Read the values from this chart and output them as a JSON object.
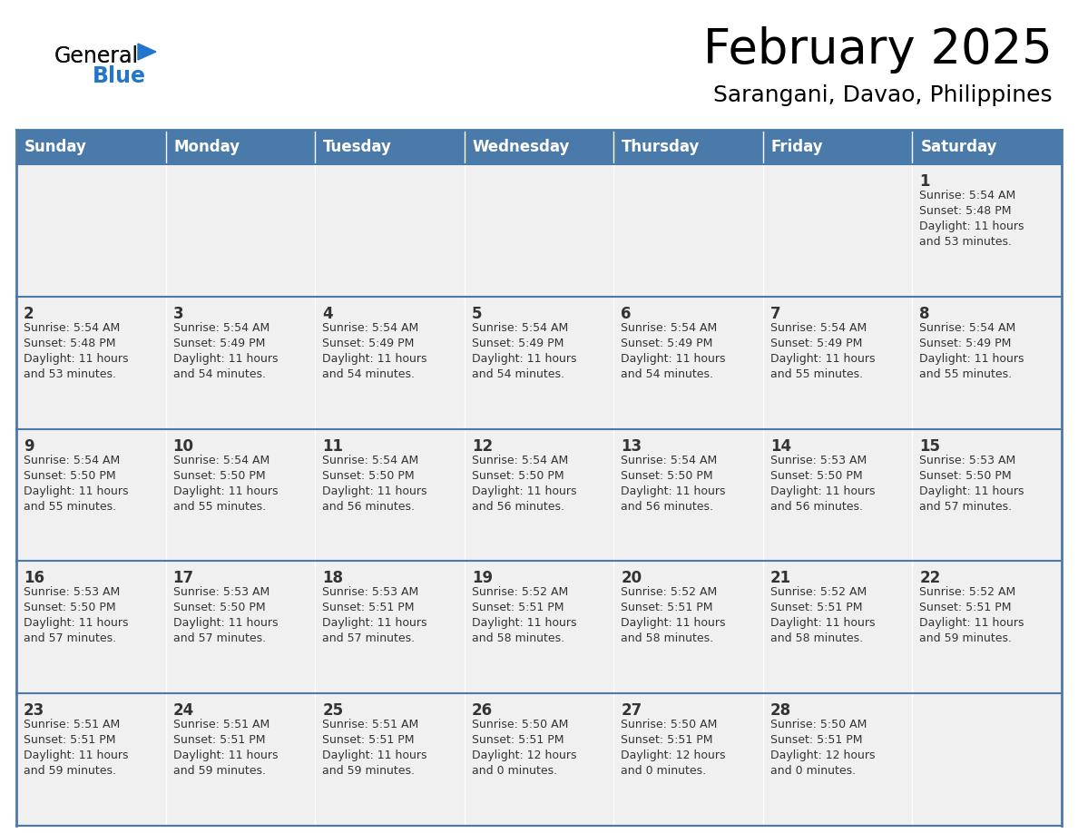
{
  "title": "February 2025",
  "subtitle": "Sarangani, Davao, Philippines",
  "header_color": "#4a7aaa",
  "header_text_color": "#FFFFFF",
  "cell_bg_color": "#F0F0F0",
  "border_color": "#4a7aaa",
  "text_color": "#333333",
  "day_num_color": "#333333",
  "day_headers": [
    "Sunday",
    "Monday",
    "Tuesday",
    "Wednesday",
    "Thursday",
    "Friday",
    "Saturday"
  ],
  "logo_color_general": "#111111",
  "logo_color_blue": "#2277cc",
  "logo_triangle_color": "#2277cc",
  "weeks": [
    [
      {
        "day": "",
        "info": ""
      },
      {
        "day": "",
        "info": ""
      },
      {
        "day": "",
        "info": ""
      },
      {
        "day": "",
        "info": ""
      },
      {
        "day": "",
        "info": ""
      },
      {
        "day": "",
        "info": ""
      },
      {
        "day": "1",
        "info": "Sunrise: 5:54 AM\nSunset: 5:48 PM\nDaylight: 11 hours\nand 53 minutes."
      }
    ],
    [
      {
        "day": "2",
        "info": "Sunrise: 5:54 AM\nSunset: 5:48 PM\nDaylight: 11 hours\nand 53 minutes."
      },
      {
        "day": "3",
        "info": "Sunrise: 5:54 AM\nSunset: 5:49 PM\nDaylight: 11 hours\nand 54 minutes."
      },
      {
        "day": "4",
        "info": "Sunrise: 5:54 AM\nSunset: 5:49 PM\nDaylight: 11 hours\nand 54 minutes."
      },
      {
        "day": "5",
        "info": "Sunrise: 5:54 AM\nSunset: 5:49 PM\nDaylight: 11 hours\nand 54 minutes."
      },
      {
        "day": "6",
        "info": "Sunrise: 5:54 AM\nSunset: 5:49 PM\nDaylight: 11 hours\nand 54 minutes."
      },
      {
        "day": "7",
        "info": "Sunrise: 5:54 AM\nSunset: 5:49 PM\nDaylight: 11 hours\nand 55 minutes."
      },
      {
        "day": "8",
        "info": "Sunrise: 5:54 AM\nSunset: 5:49 PM\nDaylight: 11 hours\nand 55 minutes."
      }
    ],
    [
      {
        "day": "9",
        "info": "Sunrise: 5:54 AM\nSunset: 5:50 PM\nDaylight: 11 hours\nand 55 minutes."
      },
      {
        "day": "10",
        "info": "Sunrise: 5:54 AM\nSunset: 5:50 PM\nDaylight: 11 hours\nand 55 minutes."
      },
      {
        "day": "11",
        "info": "Sunrise: 5:54 AM\nSunset: 5:50 PM\nDaylight: 11 hours\nand 56 minutes."
      },
      {
        "day": "12",
        "info": "Sunrise: 5:54 AM\nSunset: 5:50 PM\nDaylight: 11 hours\nand 56 minutes."
      },
      {
        "day": "13",
        "info": "Sunrise: 5:54 AM\nSunset: 5:50 PM\nDaylight: 11 hours\nand 56 minutes."
      },
      {
        "day": "14",
        "info": "Sunrise: 5:53 AM\nSunset: 5:50 PM\nDaylight: 11 hours\nand 56 minutes."
      },
      {
        "day": "15",
        "info": "Sunrise: 5:53 AM\nSunset: 5:50 PM\nDaylight: 11 hours\nand 57 minutes."
      }
    ],
    [
      {
        "day": "16",
        "info": "Sunrise: 5:53 AM\nSunset: 5:50 PM\nDaylight: 11 hours\nand 57 minutes."
      },
      {
        "day": "17",
        "info": "Sunrise: 5:53 AM\nSunset: 5:50 PM\nDaylight: 11 hours\nand 57 minutes."
      },
      {
        "day": "18",
        "info": "Sunrise: 5:53 AM\nSunset: 5:51 PM\nDaylight: 11 hours\nand 57 minutes."
      },
      {
        "day": "19",
        "info": "Sunrise: 5:52 AM\nSunset: 5:51 PM\nDaylight: 11 hours\nand 58 minutes."
      },
      {
        "day": "20",
        "info": "Sunrise: 5:52 AM\nSunset: 5:51 PM\nDaylight: 11 hours\nand 58 minutes."
      },
      {
        "day": "21",
        "info": "Sunrise: 5:52 AM\nSunset: 5:51 PM\nDaylight: 11 hours\nand 58 minutes."
      },
      {
        "day": "22",
        "info": "Sunrise: 5:52 AM\nSunset: 5:51 PM\nDaylight: 11 hours\nand 59 minutes."
      }
    ],
    [
      {
        "day": "23",
        "info": "Sunrise: 5:51 AM\nSunset: 5:51 PM\nDaylight: 11 hours\nand 59 minutes."
      },
      {
        "day": "24",
        "info": "Sunrise: 5:51 AM\nSunset: 5:51 PM\nDaylight: 11 hours\nand 59 minutes."
      },
      {
        "day": "25",
        "info": "Sunrise: 5:51 AM\nSunset: 5:51 PM\nDaylight: 11 hours\nand 59 minutes."
      },
      {
        "day": "26",
        "info": "Sunrise: 5:50 AM\nSunset: 5:51 PM\nDaylight: 12 hours\nand 0 minutes."
      },
      {
        "day": "27",
        "info": "Sunrise: 5:50 AM\nSunset: 5:51 PM\nDaylight: 12 hours\nand 0 minutes."
      },
      {
        "day": "28",
        "info": "Sunrise: 5:50 AM\nSunset: 5:51 PM\nDaylight: 12 hours\nand 0 minutes."
      },
      {
        "day": "",
        "info": ""
      }
    ]
  ]
}
